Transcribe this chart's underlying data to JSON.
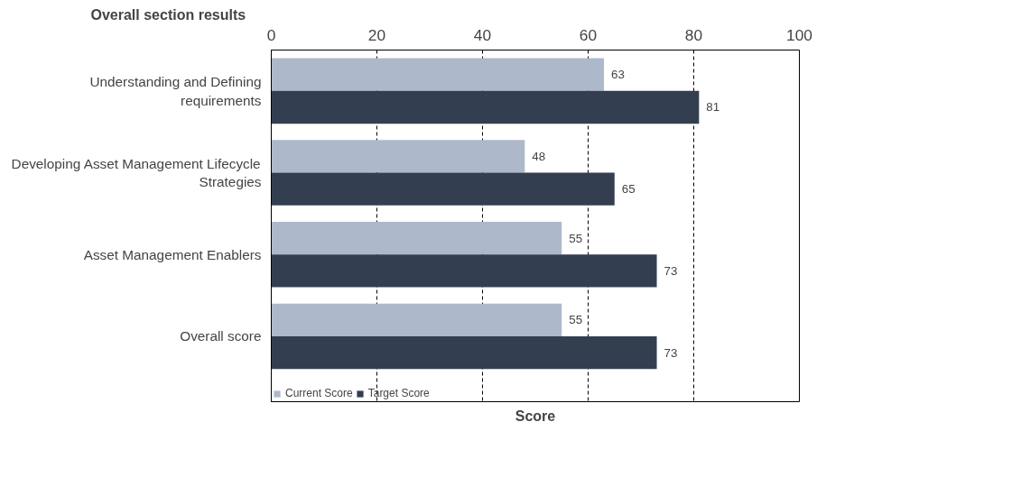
{
  "chart_data": {
    "type": "bar",
    "orientation": "horizontal",
    "title": "Overall section results",
    "xlabel": "Score",
    "categories": [
      "Understanding and Defining requirements",
      "Developing Asset Management Lifecycle Strategies",
      "Asset Management Enablers",
      "Overall score"
    ],
    "series": [
      {
        "name": "Current Score",
        "color": "#adb9ca",
        "values": [
          63,
          48,
          55,
          55
        ]
      },
      {
        "name": "Target Score",
        "color": "#333f50",
        "values": [
          81,
          65,
          73,
          73
        ]
      }
    ],
    "xlim": [
      0,
      100
    ],
    "xticks": [
      0,
      20,
      40,
      60,
      80,
      100
    ],
    "grid": "x",
    "legend": "bottom left",
    "data_labels": true
  }
}
